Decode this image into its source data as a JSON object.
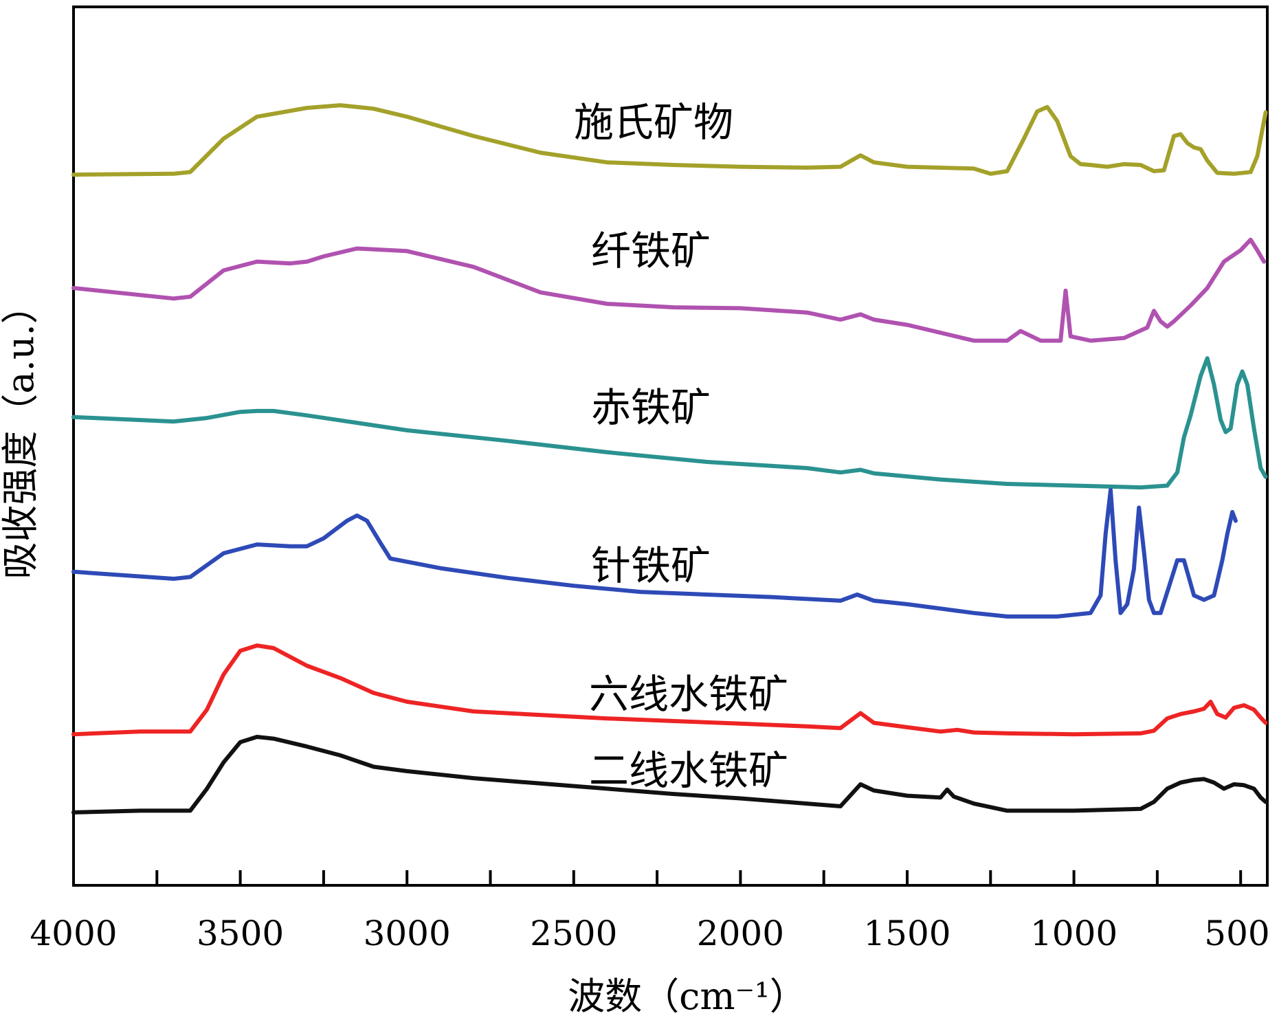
{
  "chart_data": {
    "type": "line",
    "title": "",
    "xlabel": "波数（cm⁻¹）",
    "ylabel": "吸收强度（a.u.）",
    "xlim": [
      4000,
      420
    ],
    "x_reversed": true,
    "xticks": [
      4000,
      3500,
      3000,
      2500,
      2000,
      1500,
      1000,
      500
    ],
    "xtick_labels": [
      "4000",
      "3500",
      "3000",
      "2500",
      "2000",
      "1500",
      "1000",
      "500"
    ],
    "ylim": [
      0,
      100
    ],
    "grid": false,
    "legend": "none",
    "series": [
      {
        "name": "施氏矿物",
        "color": "#a4a12a",
        "points": [
          [
            4000,
            80.9
          ],
          [
            3700,
            81.0
          ],
          [
            3650,
            81.2
          ],
          [
            3550,
            85.0
          ],
          [
            3450,
            87.5
          ],
          [
            3300,
            88.5
          ],
          [
            3200,
            88.8
          ],
          [
            3100,
            88.4
          ],
          [
            3000,
            87.5
          ],
          [
            2800,
            85.3
          ],
          [
            2600,
            83.4
          ],
          [
            2400,
            82.3
          ],
          [
            2200,
            82.0
          ],
          [
            2000,
            81.8
          ],
          [
            1800,
            81.7
          ],
          [
            1700,
            81.8
          ],
          [
            1640,
            83.1
          ],
          [
            1600,
            82.3
          ],
          [
            1500,
            81.8
          ],
          [
            1300,
            81.6
          ],
          [
            1250,
            81.0
          ],
          [
            1200,
            81.3
          ],
          [
            1150,
            85.0
          ],
          [
            1110,
            88.1
          ],
          [
            1080,
            88.6
          ],
          [
            1050,
            87.0
          ],
          [
            1010,
            83.0
          ],
          [
            980,
            82.1
          ],
          [
            950,
            82.0
          ],
          [
            900,
            81.8
          ],
          [
            850,
            82.1
          ],
          [
            800,
            82.0
          ],
          [
            760,
            81.3
          ],
          [
            730,
            81.4
          ],
          [
            700,
            85.3
          ],
          [
            680,
            85.5
          ],
          [
            660,
            84.5
          ],
          [
            640,
            84.0
          ],
          [
            620,
            83.8
          ],
          [
            600,
            82.5
          ],
          [
            570,
            81.1
          ],
          [
            520,
            81.0
          ],
          [
            470,
            81.2
          ],
          [
            450,
            83.0
          ],
          [
            425,
            88.0
          ]
        ]
      },
      {
        "name": "纤铁矿",
        "color": "#b052b0",
        "points": [
          [
            4000,
            68.0
          ],
          [
            3700,
            66.8
          ],
          [
            3650,
            67.0
          ],
          [
            3550,
            70.0
          ],
          [
            3450,
            71.0
          ],
          [
            3350,
            70.8
          ],
          [
            3300,
            71.0
          ],
          [
            3250,
            71.6
          ],
          [
            3150,
            72.5
          ],
          [
            3000,
            72.2
          ],
          [
            2800,
            70.4
          ],
          [
            2600,
            67.5
          ],
          [
            2400,
            66.2
          ],
          [
            2200,
            65.8
          ],
          [
            2000,
            65.7
          ],
          [
            1800,
            65.2
          ],
          [
            1700,
            64.4
          ],
          [
            1640,
            65.0
          ],
          [
            1600,
            64.4
          ],
          [
            1500,
            63.8
          ],
          [
            1300,
            62.0
          ],
          [
            1200,
            62.0
          ],
          [
            1160,
            63.1
          ],
          [
            1100,
            62.0
          ],
          [
            1040,
            62.0
          ],
          [
            1025,
            67.7
          ],
          [
            1010,
            62.5
          ],
          [
            950,
            62.0
          ],
          [
            850,
            62.3
          ],
          [
            780,
            63.5
          ],
          [
            760,
            65.4
          ],
          [
            740,
            64.2
          ],
          [
            720,
            63.6
          ],
          [
            700,
            64.2
          ],
          [
            650,
            66.0
          ],
          [
            600,
            68.0
          ],
          [
            550,
            71.0
          ],
          [
            500,
            72.3
          ],
          [
            470,
            73.5
          ],
          [
            450,
            72.3
          ],
          [
            430,
            71.0
          ]
        ]
      },
      {
        "name": "赤铁矿",
        "color": "#2a9290",
        "points": [
          [
            4000,
            53.3
          ],
          [
            3700,
            52.8
          ],
          [
            3600,
            53.2
          ],
          [
            3500,
            53.9
          ],
          [
            3450,
            54.0
          ],
          [
            3400,
            54.0
          ],
          [
            3300,
            53.5
          ],
          [
            3000,
            51.8
          ],
          [
            2700,
            50.6
          ],
          [
            2400,
            49.3
          ],
          [
            2100,
            48.2
          ],
          [
            1800,
            47.5
          ],
          [
            1700,
            47.0
          ],
          [
            1640,
            47.3
          ],
          [
            1600,
            46.9
          ],
          [
            1400,
            46.2
          ],
          [
            1200,
            45.7
          ],
          [
            1000,
            45.5
          ],
          [
            900,
            45.4
          ],
          [
            800,
            45.3
          ],
          [
            720,
            45.5
          ],
          [
            690,
            47.0
          ],
          [
            670,
            51.0
          ],
          [
            650,
            53.5
          ],
          [
            620,
            58.0
          ],
          [
            600,
            60.0
          ],
          [
            580,
            57.0
          ],
          [
            560,
            53.0
          ],
          [
            545,
            51.6
          ],
          [
            530,
            52.0
          ],
          [
            510,
            57.0
          ],
          [
            495,
            58.5
          ],
          [
            480,
            57.0
          ],
          [
            460,
            52.0
          ],
          [
            440,
            47.5
          ],
          [
            425,
            46.5
          ]
        ]
      },
      {
        "name": "针铁矿",
        "color": "#2e4ab7",
        "points": [
          [
            4000,
            35.7
          ],
          [
            3700,
            34.9
          ],
          [
            3650,
            35.1
          ],
          [
            3550,
            37.8
          ],
          [
            3450,
            38.8
          ],
          [
            3350,
            38.6
          ],
          [
            3300,
            38.6
          ],
          [
            3250,
            39.5
          ],
          [
            3180,
            41.5
          ],
          [
            3150,
            42.1
          ],
          [
            3120,
            41.5
          ],
          [
            3080,
            39.0
          ],
          [
            3050,
            37.2
          ],
          [
            2900,
            36.1
          ],
          [
            2700,
            35.0
          ],
          [
            2500,
            34.1
          ],
          [
            2300,
            33.4
          ],
          [
            2100,
            33.1
          ],
          [
            1900,
            32.8
          ],
          [
            1700,
            32.4
          ],
          [
            1650,
            33.1
          ],
          [
            1600,
            32.4
          ],
          [
            1500,
            32.0
          ],
          [
            1400,
            31.5
          ],
          [
            1300,
            31.0
          ],
          [
            1200,
            30.6
          ],
          [
            1050,
            30.6
          ],
          [
            950,
            31.0
          ],
          [
            920,
            33.0
          ],
          [
            905,
            40.0
          ],
          [
            890,
            45.0
          ],
          [
            875,
            37.0
          ],
          [
            860,
            31.0
          ],
          [
            840,
            32.0
          ],
          [
            820,
            36.0
          ],
          [
            805,
            43.0
          ],
          [
            790,
            38.0
          ],
          [
            775,
            32.5
          ],
          [
            760,
            31.0
          ],
          [
            740,
            31.0
          ],
          [
            715,
            34.0
          ],
          [
            690,
            37.0
          ],
          [
            670,
            37.0
          ],
          [
            640,
            33.0
          ],
          [
            610,
            32.5
          ],
          [
            580,
            33.0
          ],
          [
            555,
            37.0
          ],
          [
            540,
            40.0
          ],
          [
            525,
            42.5
          ],
          [
            515,
            41.5
          ]
        ]
      },
      {
        "name": "六线水铁矿",
        "color": "#ee2424",
        "points": [
          [
            4000,
            17.2
          ],
          [
            3800,
            17.5
          ],
          [
            3650,
            17.5
          ],
          [
            3600,
            20.0
          ],
          [
            3550,
            24.0
          ],
          [
            3500,
            26.7
          ],
          [
            3450,
            27.3
          ],
          [
            3400,
            27.0
          ],
          [
            3300,
            25.0
          ],
          [
            3200,
            23.6
          ],
          [
            3100,
            21.9
          ],
          [
            3000,
            20.9
          ],
          [
            2800,
            19.8
          ],
          [
            2600,
            19.4
          ],
          [
            2400,
            19.0
          ],
          [
            2200,
            18.7
          ],
          [
            2000,
            18.4
          ],
          [
            1800,
            18.1
          ],
          [
            1700,
            17.9
          ],
          [
            1640,
            19.6
          ],
          [
            1600,
            18.5
          ],
          [
            1500,
            18.0
          ],
          [
            1400,
            17.5
          ],
          [
            1350,
            17.7
          ],
          [
            1300,
            17.4
          ],
          [
            1200,
            17.3
          ],
          [
            1000,
            17.2
          ],
          [
            800,
            17.3
          ],
          [
            760,
            17.6
          ],
          [
            720,
            19.0
          ],
          [
            680,
            19.5
          ],
          [
            640,
            19.8
          ],
          [
            610,
            20.1
          ],
          [
            590,
            20.9
          ],
          [
            570,
            19.5
          ],
          [
            545,
            19.1
          ],
          [
            520,
            20.2
          ],
          [
            490,
            20.5
          ],
          [
            460,
            20.0
          ],
          [
            440,
            19.1
          ],
          [
            425,
            18.5
          ]
        ]
      },
      {
        "name": "二线水铁矿",
        "color": "#111111",
        "points": [
          [
            4000,
            8.3
          ],
          [
            3800,
            8.5
          ],
          [
            3650,
            8.5
          ],
          [
            3600,
            11.0
          ],
          [
            3550,
            14.0
          ],
          [
            3500,
            16.3
          ],
          [
            3450,
            16.9
          ],
          [
            3400,
            16.7
          ],
          [
            3300,
            15.8
          ],
          [
            3200,
            14.8
          ],
          [
            3100,
            13.5
          ],
          [
            3000,
            13.0
          ],
          [
            2800,
            12.2
          ],
          [
            2600,
            11.6
          ],
          [
            2400,
            11.0
          ],
          [
            2200,
            10.4
          ],
          [
            2000,
            9.9
          ],
          [
            1800,
            9.3
          ],
          [
            1700,
            9.0
          ],
          [
            1640,
            11.5
          ],
          [
            1600,
            10.8
          ],
          [
            1500,
            10.2
          ],
          [
            1400,
            10.0
          ],
          [
            1380,
            10.9
          ],
          [
            1360,
            10.1
          ],
          [
            1300,
            9.3
          ],
          [
            1200,
            8.5
          ],
          [
            1000,
            8.5
          ],
          [
            800,
            8.7
          ],
          [
            760,
            9.5
          ],
          [
            720,
            11.0
          ],
          [
            680,
            11.7
          ],
          [
            640,
            12.0
          ],
          [
            610,
            12.1
          ],
          [
            580,
            11.7
          ],
          [
            550,
            11.0
          ],
          [
            520,
            11.5
          ],
          [
            490,
            11.4
          ],
          [
            460,
            11.0
          ],
          [
            440,
            10.0
          ],
          [
            425,
            9.5
          ]
        ]
      }
    ]
  }
}
